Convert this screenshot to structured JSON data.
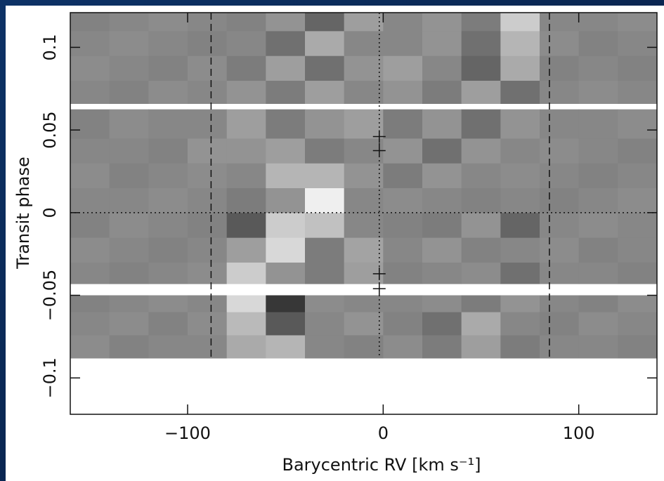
{
  "chart_data": {
    "type": "heatmap",
    "xlabel": "Barycentric RV [km s⁻¹]",
    "ylabel": "Transit phase",
    "xlim": [
      -160,
      140
    ],
    "ylim": [
      -0.122,
      0.121
    ],
    "xticks": [
      {
        "value": -100,
        "label": "−100"
      },
      0,
      100
    ],
    "yticks": [
      {
        "value": -0.1,
        "label": "−0.1"
      },
      {
        "value": -0.05,
        "label": "−0.05"
      },
      0,
      0.05,
      0.1
    ],
    "zlim": [
      0,
      100
    ],
    "x_edges": [
      -160,
      -140,
      -120,
      -100,
      -80,
      -60,
      -40,
      -20,
      0,
      20,
      40,
      60,
      80,
      100,
      120,
      140
    ],
    "y_edges": [
      -0.088,
      -0.074,
      -0.06,
      -0.05,
      -0.043,
      -0.03,
      -0.015,
      0,
      0.015,
      0.03,
      0.045,
      0.0625,
      0.066,
      0.08,
      0.095,
      0.11,
      0.121
    ],
    "z": [
      [
        52,
        48,
        50,
        50,
        65,
        70,
        50,
        48,
        52,
        45,
        60,
        45,
        50,
        50,
        48
      ],
      [
        50,
        52,
        48,
        52,
        72,
        30,
        50,
        55,
        48,
        40,
        65,
        50,
        48,
        52,
        50
      ],
      [
        48,
        50,
        52,
        50,
        85,
        15,
        52,
        50,
        50,
        52,
        45,
        55,
        50,
        48,
        52
      ],
      [
        null,
        null,
        null,
        null,
        null,
        null,
        null,
        null,
        null,
        null,
        null,
        null,
        null,
        null,
        null
      ],
      [
        50,
        48,
        50,
        52,
        80,
        55,
        45,
        60,
        48,
        50,
        52,
        40,
        50,
        50,
        48
      ],
      [
        52,
        50,
        48,
        50,
        60,
        85,
        45,
        62,
        50,
        55,
        48,
        50,
        52,
        48,
        50
      ],
      [
        48,
        52,
        50,
        48,
        30,
        80,
        75,
        50,
        48,
        45,
        55,
        35,
        50,
        52,
        50
      ],
      [
        50,
        50,
        52,
        50,
        45,
        55,
        95,
        50,
        52,
        50,
        48,
        50,
        48,
        50,
        52
      ],
      [
        52,
        48,
        50,
        52,
        50,
        70,
        70,
        55,
        45,
        55,
        50,
        52,
        50,
        48,
        50
      ],
      [
        50,
        50,
        48,
        55,
        55,
        60,
        45,
        50,
        55,
        40,
        55,
        50,
        52,
        50,
        48
      ],
      [
        48,
        52,
        50,
        50,
        60,
        45,
        55,
        60,
        45,
        55,
        40,
        55,
        50,
        50,
        52
      ],
      [
        null,
        null,
        null,
        null,
        null,
        null,
        null,
        null,
        null,
        null,
        null,
        null,
        null,
        null,
        null
      ],
      [
        50,
        48,
        52,
        50,
        55,
        45,
        60,
        50,
        55,
        45,
        60,
        40,
        50,
        52,
        50
      ],
      [
        52,
        50,
        48,
        52,
        45,
        60,
        40,
        55,
        60,
        50,
        35,
        65,
        48,
        50,
        48
      ],
      [
        50,
        52,
        50,
        48,
        50,
        40,
        65,
        50,
        50,
        55,
        40,
        70,
        52,
        48,
        50
      ],
      [
        48,
        50,
        52,
        50,
        48,
        55,
        35,
        60,
        50,
        55,
        45,
        80,
        50,
        50,
        52
      ]
    ],
    "vlines": [
      {
        "x": -88,
        "style": "dashed"
      },
      {
        "x": 85,
        "style": "dashed"
      },
      {
        "x": -2,
        "style": "dotted"
      }
    ],
    "hlines": [
      {
        "y": 0,
        "style": "dotted"
      }
    ],
    "markers": {
      "x": [
        -2,
        -2,
        -2,
        -2
      ],
      "y": [
        0.046,
        0.0375,
        -0.037,
        -0.046
      ]
    }
  }
}
